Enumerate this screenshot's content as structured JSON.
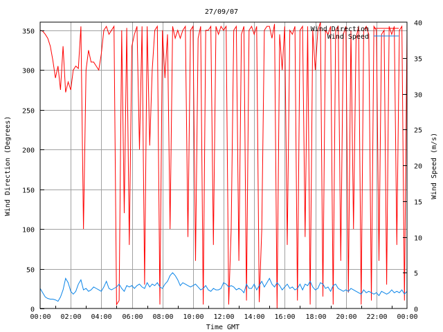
{
  "chart_data": {
    "type": "line",
    "title": "27/09/07",
    "xlabel": "Time GMT",
    "ylabel": "Wind Direction (Degrees)",
    "y2label": "Wind Speed (m/s)",
    "ylim": [
      0,
      360
    ],
    "y2lim": [
      0,
      40
    ],
    "yticks": [
      "0",
      "50",
      "100",
      "150",
      "200",
      "250",
      "300",
      "350"
    ],
    "y2ticks": [
      "0",
      "5",
      "10",
      "15",
      "20",
      "25",
      "30",
      "35",
      "40"
    ],
    "xticks": [
      "00:00",
      "02:00",
      "04:00",
      "06:00",
      "08:00",
      "10:00",
      "12:00",
      "14:00",
      "16:00",
      "18:00",
      "20:00",
      "22:00",
      "00:00"
    ],
    "xlim_hours": [
      0,
      24
    ],
    "grid": true,
    "legend_position": "top-right",
    "series": [
      {
        "name": "Wind Direction",
        "axis": "left",
        "color": "#ff0000",
        "x_step_minutes": 10,
        "values": [
          350,
          349,
          345,
          340,
          330,
          312,
          290,
          305,
          275,
          330,
          272,
          285,
          275,
          300,
          305,
          302,
          355,
          100,
          300,
          325,
          310,
          310,
          305,
          300,
          320,
          350,
          355,
          345,
          350,
          355,
          5,
          10,
          350,
          120,
          353,
          80,
          330,
          345,
          355,
          200,
          355,
          30,
          355,
          205,
          300,
          350,
          355,
          5,
          350,
          290,
          345,
          100,
          355,
          340,
          350,
          340,
          350,
          355,
          90,
          350,
          355,
          60,
          340,
          355,
          5,
          350,
          350,
          355,
          80,
          355,
          345,
          355,
          350,
          355,
          5,
          100,
          350,
          355,
          60,
          345,
          355,
          10,
          350,
          355,
          345,
          355,
          8,
          100,
          350,
          355,
          355,
          340,
          358,
          0,
          345,
          300,
          355,
          80,
          350,
          345,
          355,
          10,
          350,
          355,
          90,
          355,
          5,
          350,
          300,
          350,
          360,
          15,
          350,
          345,
          355,
          5,
          350,
          355,
          60,
          345,
          355,
          20,
          350,
          100,
          340,
          355,
          5,
          350,
          355,
          345,
          10,
          355,
          350,
          60,
          345,
          350,
          30,
          355,
          345,
          355,
          80,
          350,
          355,
          10,
          350
        ]
      },
      {
        "name": "Wind Speed",
        "axis": "right",
        "color": "#0a84e8",
        "x_step_minutes": 10,
        "values": [
          2.8,
          2.2,
          1.6,
          1.4,
          1.3,
          1.3,
          1.2,
          1.0,
          1.6,
          2.6,
          4.2,
          3.6,
          2.4,
          2.0,
          2.4,
          3.4,
          4.0,
          2.6,
          2.8,
          2.4,
          2.6,
          3.0,
          2.8,
          2.6,
          2.4,
          3.0,
          3.8,
          2.8,
          2.6,
          2.8,
          3.0,
          3.4,
          2.8,
          2.4,
          3.2,
          3.0,
          3.2,
          2.8,
          3.2,
          3.4,
          3.0,
          2.8,
          3.6,
          3.0,
          3.4,
          3.2,
          3.6,
          3.0,
          2.8,
          3.4,
          3.8,
          4.6,
          5.0,
          4.6,
          4.0,
          3.2,
          3.6,
          3.4,
          3.2,
          3.0,
          3.2,
          3.4,
          3.0,
          2.6,
          2.8,
          3.2,
          2.6,
          2.4,
          2.8,
          2.6,
          2.6,
          2.8,
          3.6,
          3.4,
          3.0,
          3.2,
          3.0,
          2.6,
          2.8,
          2.6,
          2.2,
          3.4,
          2.8,
          2.8,
          3.4,
          2.6,
          3.2,
          3.8,
          3.0,
          3.6,
          4.2,
          3.4,
          3.0,
          3.6,
          3.2,
          2.6,
          3.0,
          3.4,
          2.8,
          3.0,
          2.6,
          2.8,
          3.4,
          2.6,
          3.4,
          3.2,
          3.8,
          3.0,
          2.6,
          2.8,
          3.6,
          3.4,
          2.8,
          3.0,
          2.4,
          3.2,
          3.4,
          2.8,
          2.6,
          2.4,
          2.6,
          2.4,
          2.8,
          2.6,
          2.4,
          2.2,
          2.0,
          2.6,
          2.2,
          2.4,
          2.2,
          2.0,
          2.2,
          1.8,
          2.4,
          2.2,
          2.0,
          2.2,
          2.6,
          2.2,
          2.4,
          2.2,
          2.6,
          2.0,
          2.4
        ]
      }
    ]
  }
}
